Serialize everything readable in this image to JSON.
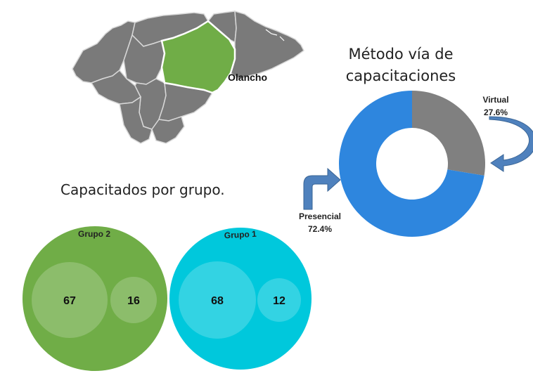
{
  "map": {
    "highlight_label": "Olancho",
    "base_color": "#7a7a7a",
    "highlight_color": "#70ad47"
  },
  "chart_data": [
    {
      "type": "pie",
      "title": "Método vía de capacitaciones",
      "title_lines": [
        "Método vía de",
        "capacitaciones"
      ],
      "slices": [
        {
          "label": "Virtual",
          "value": 27.6,
          "value_text": "27.6%",
          "color": "#808080"
        },
        {
          "label": "Presencial",
          "value": 72.4,
          "value_text": "72.4%",
          "color": "#2e86de"
        }
      ],
      "arrow_color": "#4f81bd"
    },
    {
      "type": "bubble",
      "title": "Capacitados por grupo.",
      "groups": [
        {
          "name": "Grupo 2",
          "color": "#70ad47",
          "values": [
            67,
            16
          ]
        },
        {
          "name": "Grupo 1",
          "color": "#00c8dc",
          "values": [
            68,
            12
          ]
        }
      ]
    }
  ]
}
